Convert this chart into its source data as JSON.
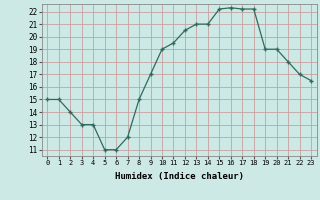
{
  "x": [
    0,
    1,
    2,
    3,
    4,
    5,
    6,
    7,
    8,
    9,
    10,
    11,
    12,
    13,
    14,
    15,
    16,
    17,
    18,
    19,
    20,
    21,
    22,
    23
  ],
  "y": [
    15,
    15,
    14,
    13,
    13,
    11,
    11,
    12,
    15,
    17,
    19,
    19.5,
    20.5,
    21,
    21,
    22.2,
    22.3,
    22.2,
    22.2,
    19,
    19,
    18,
    17,
    16.5
  ],
  "line_color": "#2e6b5e",
  "marker": "+",
  "bg_color": "#cce9e5",
  "grid_color": "#c8a0a0",
  "xlabel": "Humidex (Indice chaleur)",
  "ylabel_ticks": [
    11,
    12,
    13,
    14,
    15,
    16,
    17,
    18,
    19,
    20,
    21,
    22
  ],
  "ylim": [
    10.5,
    22.6
  ],
  "xlim": [
    -0.5,
    23.5
  ]
}
